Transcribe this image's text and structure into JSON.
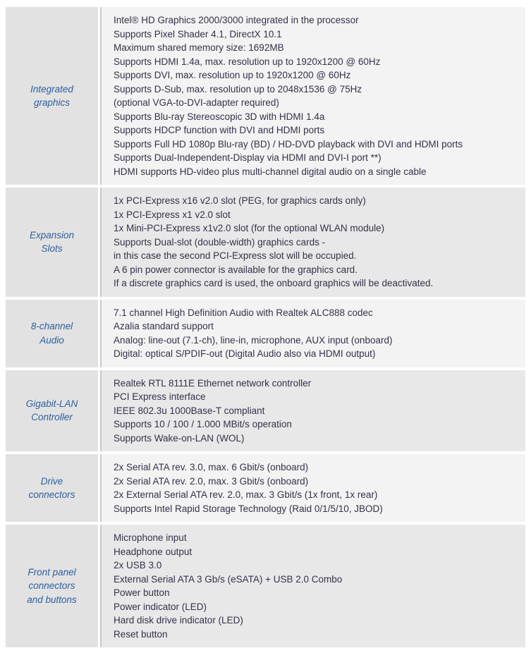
{
  "colors": {
    "page_background": "#ffffff",
    "label_cell_background": "#e2e2e2",
    "row_light_background": "#f3f3f3",
    "row_dark_background": "#e8e8e8",
    "divider": "#c9c9c9",
    "label_text": "#2d5f9f",
    "body_text": "#32324a"
  },
  "table": {
    "rows": [
      {
        "label": "Integrated\ngraphics",
        "lines": [
          "Intel® HD Graphics 2000/3000 integrated in the processor",
          "Supports Pixel Shader 4.1, DirectX 10.1",
          "Maximum shared memory size: 1692MB",
          "Supports HDMI 1.4a, max. resolution up to 1920x1200 @ 60Hz",
          "Supports DVI, max. resolution up to 1920x1200 @ 60Hz",
          "Supports D-Sub, max. resolution up to 2048x1536 @ 75Hz",
          "(optional VGA-to-DVI-adapter required)",
          "Supports Blu-ray Stereoscopic 3D with HDMI 1.4a",
          "Supports HDCP function with DVI and HDMI ports",
          "Supports Full HD 1080p Blu-ray (BD) / HD-DVD playback with DVI and HDMI ports",
          "Supports Dual-Independent-Display via HDMI and DVI-I port **)",
          "HDMI supports HD-video plus multi-channel digital audio on a single cable"
        ]
      },
      {
        "label": "Expansion\nSlots",
        "lines": [
          "1x PCI-Express x16 v2.0 slot (PEG, for graphics cards only)",
          "1x PCI-Express x1  v2.0 slot",
          "1x Mini-PCI-Express x1v2.0 slot (for the optional WLAN module)",
          "Supports Dual-slot (double-width) graphics cards -",
          "in this case the second PCI-Express slot will be occupied.",
          "A 6 pin power connector is available for the graphics card.",
          "If a discrete graphics card is used, the onboard graphics will be deactivated."
        ]
      },
      {
        "label": "8-channel\nAudio",
        "lines": [
          "7.1 channel High Definition Audio with Realtek ALC888 codec",
          "Azalia standard support",
          "Analog: line-out (7.1-ch), line-in, microphone, AUX input (onboard)",
          "Digital: optical S/PDIF-out (Digital Audio also via HDMI output)"
        ]
      },
      {
        "label": "Gigabit-LAN\nController",
        "lines": [
          "Realtek RTL 8111E Ethernet network controller",
          "PCI Express interface",
          "IEEE 802.3u 1000Base-T compliant",
          "Supports 10 / 100 / 1.000 MBit/s operation",
          "Supports Wake-on-LAN (WOL)"
        ]
      },
      {
        "label": "Drive\nconnectors",
        "lines": [
          "2x Serial ATA rev. 3.0, max. 6 Gbit/s (onboard)",
          "2x Serial ATA rev. 2.0, max. 3 Gbit/s (onboard)",
          "2x External Serial ATA rev. 2.0, max. 3 Gbit/s (1x front, 1x rear)",
          "Supports Intel Rapid Storage Technology (Raid 0/1/5/10, JBOD)"
        ]
      },
      {
        "label": "Front panel\nconnectors\nand buttons",
        "lines": [
          "Microphone input",
          "Headphone output",
          "2x USB 3.0",
          "External Serial ATA 3 Gb/s (eSATA) + USB 2.0 Combo",
          "Power button",
          "Power indicator (LED)",
          "Hard disk drive indicator (LED)",
          "Reset button"
        ]
      }
    ]
  }
}
